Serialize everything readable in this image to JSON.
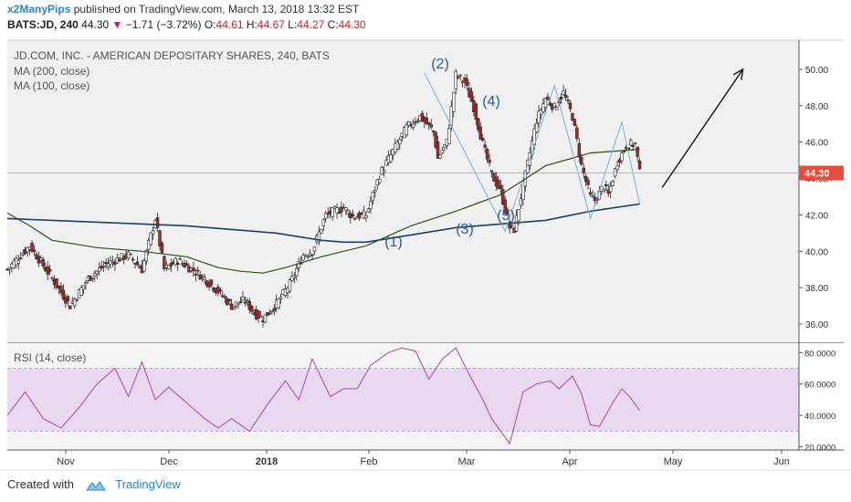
{
  "header": {
    "user": "x2ManyPips",
    "published_text": "published on TradingView.com, March 13, 2018 13:32 EST",
    "symbol": "BATS:JD, 240",
    "last": "44.30",
    "change": "−1.71 (−3.72%)",
    "open_label": "O:",
    "open": "44.61",
    "high_label": "H:",
    "high": "44.67",
    "low_label": "L:",
    "low": "44.27",
    "close_label": "C:",
    "close": "44.30"
  },
  "footer": {
    "created_with": "Created with",
    "brand": "TradingView"
  },
  "colors": {
    "panel_bg": "#f0f0f0",
    "candle_up": "#ffffff",
    "candle_down": "#a52a2a",
    "candle_outline": "#222222",
    "ma200": "#1c3f6e",
    "ma100": "#2f4f1f",
    "rsi_line": "#a64ca6",
    "rsi_band": "#e8d8f0",
    "wave_line": "#7ab0dc",
    "price_tag": "#e74c3c",
    "wave_label": "#2a5d8f"
  },
  "chart_data": [
    {
      "type": "candlestick",
      "title": "JD.COM, INC. - AMERICAN DEPOSITARY SHARES, 240, BATS",
      "legend": [
        "MA (200, close)",
        "MA (100, close)"
      ],
      "x_tick_labels": [
        "Nov",
        "Dec",
        "2018",
        "Feb",
        "Mar",
        "Apr",
        "May",
        "Jun"
      ],
      "y_tick_labels": [
        "36.00",
        "38.00",
        "40.00",
        "42.00",
        "44.00",
        "46.00",
        "48.00",
        "50.00"
      ],
      "ylim": [
        35.0,
        51.6
      ],
      "last_price": "44.30",
      "last_price_value": 44.3,
      "close_path": [
        [
          0,
          39.0
        ],
        [
          5,
          40.3
        ],
        [
          10,
          38.5
        ],
        [
          14,
          37.0
        ],
        [
          18,
          38.5
        ],
        [
          22,
          39.3
        ],
        [
          27,
          39.8
        ],
        [
          30,
          39.0
        ],
        [
          33,
          41.8
        ],
        [
          35,
          39.0
        ],
        [
          38,
          39.5
        ],
        [
          43,
          38.7
        ],
        [
          47,
          37.8
        ],
        [
          50,
          37.0
        ],
        [
          53,
          37.3
        ],
        [
          55,
          36.6
        ],
        [
          57,
          36.3
        ],
        [
          60,
          37.1
        ],
        [
          63,
          38.2
        ],
        [
          66,
          39.8
        ],
        [
          68,
          40.0
        ],
        [
          71,
          42.0
        ],
        [
          75,
          42.4
        ],
        [
          77,
          41.9
        ],
        [
          80,
          42.0
        ],
        [
          83,
          44.2
        ],
        [
          86,
          45.5
        ],
        [
          89,
          46.8
        ],
        [
          92,
          47.4
        ],
        [
          95,
          46.6
        ],
        [
          96,
          45.1
        ],
        [
          98,
          46.0
        ],
        [
          100,
          49.7
        ],
        [
          102,
          49.3
        ],
        [
          104,
          47.9
        ],
        [
          106,
          45.9
        ],
        [
          108,
          44.2
        ],
        [
          110,
          43.3
        ],
        [
          112,
          41.3
        ],
        [
          113,
          41.2
        ],
        [
          115,
          43.6
        ],
        [
          118,
          47.2
        ],
        [
          120,
          48.4
        ],
        [
          122,
          47.9
        ],
        [
          124,
          48.7
        ],
        [
          126,
          47.4
        ],
        [
          128,
          44.7
        ],
        [
          130,
          43.0
        ],
        [
          131,
          42.8
        ],
        [
          133,
          43.6
        ],
        [
          134,
          43.1
        ],
        [
          136,
          44.9
        ],
        [
          138,
          45.8
        ],
        [
          140,
          45.9
        ],
        [
          141,
          44.3
        ]
      ],
      "ma200": [
        [
          0,
          41.8
        ],
        [
          10,
          41.7
        ],
        [
          20,
          41.6
        ],
        [
          30,
          41.5
        ],
        [
          40,
          41.4
        ],
        [
          50,
          41.2
        ],
        [
          60,
          41.0
        ],
        [
          70,
          40.6
        ],
        [
          75,
          40.5
        ],
        [
          80,
          40.5
        ],
        [
          90,
          40.9
        ],
        [
          100,
          41.3
        ],
        [
          110,
          41.5
        ],
        [
          120,
          41.7
        ],
        [
          130,
          42.2
        ],
        [
          141,
          42.6
        ]
      ],
      "ma100": [
        [
          0,
          42.1
        ],
        [
          5,
          41.4
        ],
        [
          10,
          40.6
        ],
        [
          20,
          40.2
        ],
        [
          30,
          40.0
        ],
        [
          40,
          39.7
        ],
        [
          47,
          39.1
        ],
        [
          52,
          38.9
        ],
        [
          57,
          38.8
        ],
        [
          62,
          39.1
        ],
        [
          70,
          39.7
        ],
        [
          80,
          40.3
        ],
        [
          90,
          41.4
        ],
        [
          100,
          42.2
        ],
        [
          110,
          43.1
        ],
        [
          120,
          44.7
        ],
        [
          130,
          45.4
        ],
        [
          141,
          45.6
        ]
      ],
      "wave_points": [
        [
          93,
          49.8
        ],
        [
          111,
          41.1
        ],
        [
          122,
          49.1
        ],
        [
          130,
          41.8
        ],
        [
          137,
          47.1
        ],
        [
          141,
          42.6
        ]
      ],
      "wave_labels": [
        "(1)",
        "(2)",
        "(3)",
        "(4)",
        "(5)"
      ],
      "projection_arrow": {
        "from": [
          146,
          43.5
        ],
        "to": [
          164,
          50.0
        ]
      }
    },
    {
      "type": "line",
      "title": "RSI (14, close)",
      "y_tick_labels": [
        "20.0000",
        "40.0000",
        "60.0000",
        "80.0000"
      ],
      "ylim": [
        18,
        86
      ],
      "band": [
        30,
        70
      ],
      "values": [
        [
          0,
          40
        ],
        [
          4,
          55
        ],
        [
          8,
          38
        ],
        [
          12,
          32
        ],
        [
          16,
          45
        ],
        [
          20,
          60
        ],
        [
          24,
          70
        ],
        [
          27,
          52
        ],
        [
          30,
          74
        ],
        [
          33,
          50
        ],
        [
          36,
          58
        ],
        [
          40,
          48
        ],
        [
          44,
          38
        ],
        [
          47,
          32
        ],
        [
          50,
          38
        ],
        [
          54,
          30
        ],
        [
          58,
          47
        ],
        [
          62,
          62
        ],
        [
          65,
          50
        ],
        [
          68,
          76
        ],
        [
          72,
          52
        ],
        [
          75,
          57
        ],
        [
          78,
          57
        ],
        [
          81,
          72
        ],
        [
          85,
          80
        ],
        [
          88,
          83
        ],
        [
          91,
          81
        ],
        [
          94,
          63
        ],
        [
          97,
          76
        ],
        [
          100,
          83
        ],
        [
          103,
          66
        ],
        [
          106,
          50
        ],
        [
          108,
          38
        ],
        [
          110,
          30
        ],
        [
          112,
          22
        ],
        [
          115,
          55
        ],
        [
          118,
          60
        ],
        [
          121,
          62
        ],
        [
          123,
          57
        ],
        [
          126,
          65
        ],
        [
          128,
          54
        ],
        [
          130,
          34
        ],
        [
          132,
          33
        ],
        [
          135,
          48
        ],
        [
          137,
          57
        ],
        [
          139,
          51
        ],
        [
          141,
          43
        ]
      ]
    }
  ]
}
